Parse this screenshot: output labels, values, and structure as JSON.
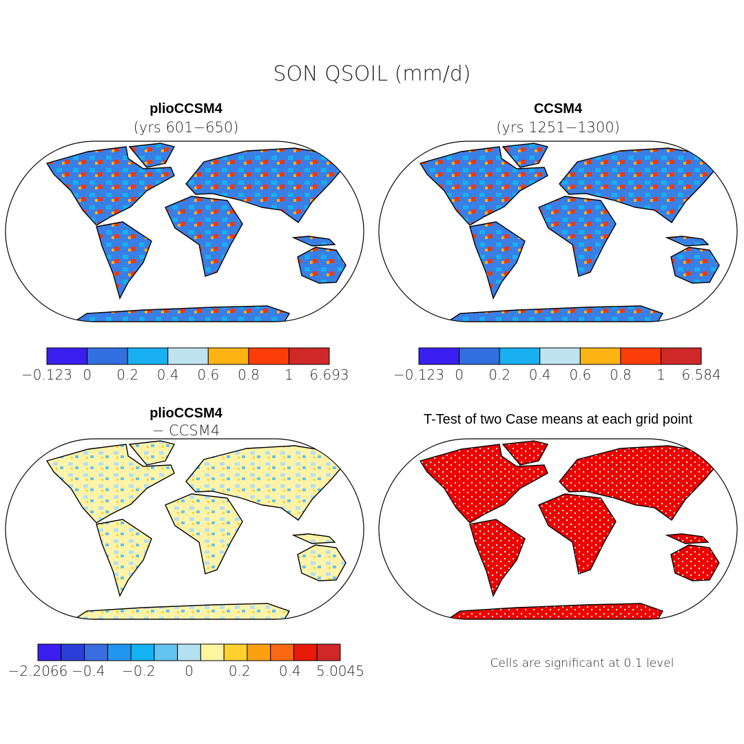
{
  "title": "SON QSOIL (mm/d)",
  "panels": [
    {
      "title": "plioCCSM4",
      "subtitle": "(yrs 601−650)",
      "colorbar": {
        "colors": [
          "#3a1ff0",
          "#3070e0",
          "#18b0f0",
          "#bfe3f0",
          "#fcb415",
          "#fb3d0a",
          "#d02828"
        ],
        "labels": [
          "−0.123",
          "0",
          "0.2",
          "0.4",
          "0.6",
          "0.8",
          "1",
          "6.693"
        ]
      }
    },
    {
      "title": "CCSM4",
      "subtitle": "(yrs 1251−1300)",
      "colorbar": {
        "colors": [
          "#3a1ff0",
          "#3070e0",
          "#18b0f0",
          "#bfe3f0",
          "#fcb415",
          "#fb3d0a",
          "#d02828"
        ],
        "labels": [
          "−0.123",
          "0",
          "0.2",
          "0.4",
          "0.6",
          "0.8",
          "1",
          "6.584"
        ]
      }
    },
    {
      "title": "plioCCSM4",
      "subtitle": "− CCSM4",
      "colorbar": {
        "colors": [
          "#3a1ff0",
          "#2a3fd8",
          "#3a6ee0",
          "#2196f0",
          "#14b4f4",
          "#64c4f0",
          "#b4e0f0",
          "#fff4a0",
          "#fed030",
          "#fda010",
          "#fa6812",
          "#e81a0a",
          "#d02828"
        ],
        "labels": [
          "−2.2066",
          "−0.4",
          "−0.2",
          "0",
          "0.2",
          "0.4",
          "5.0045"
        ]
      }
    },
    {
      "title": "T-Test of two Case means at each grid point",
      "note": "Cells are significant at 0.1 level"
    }
  ]
}
